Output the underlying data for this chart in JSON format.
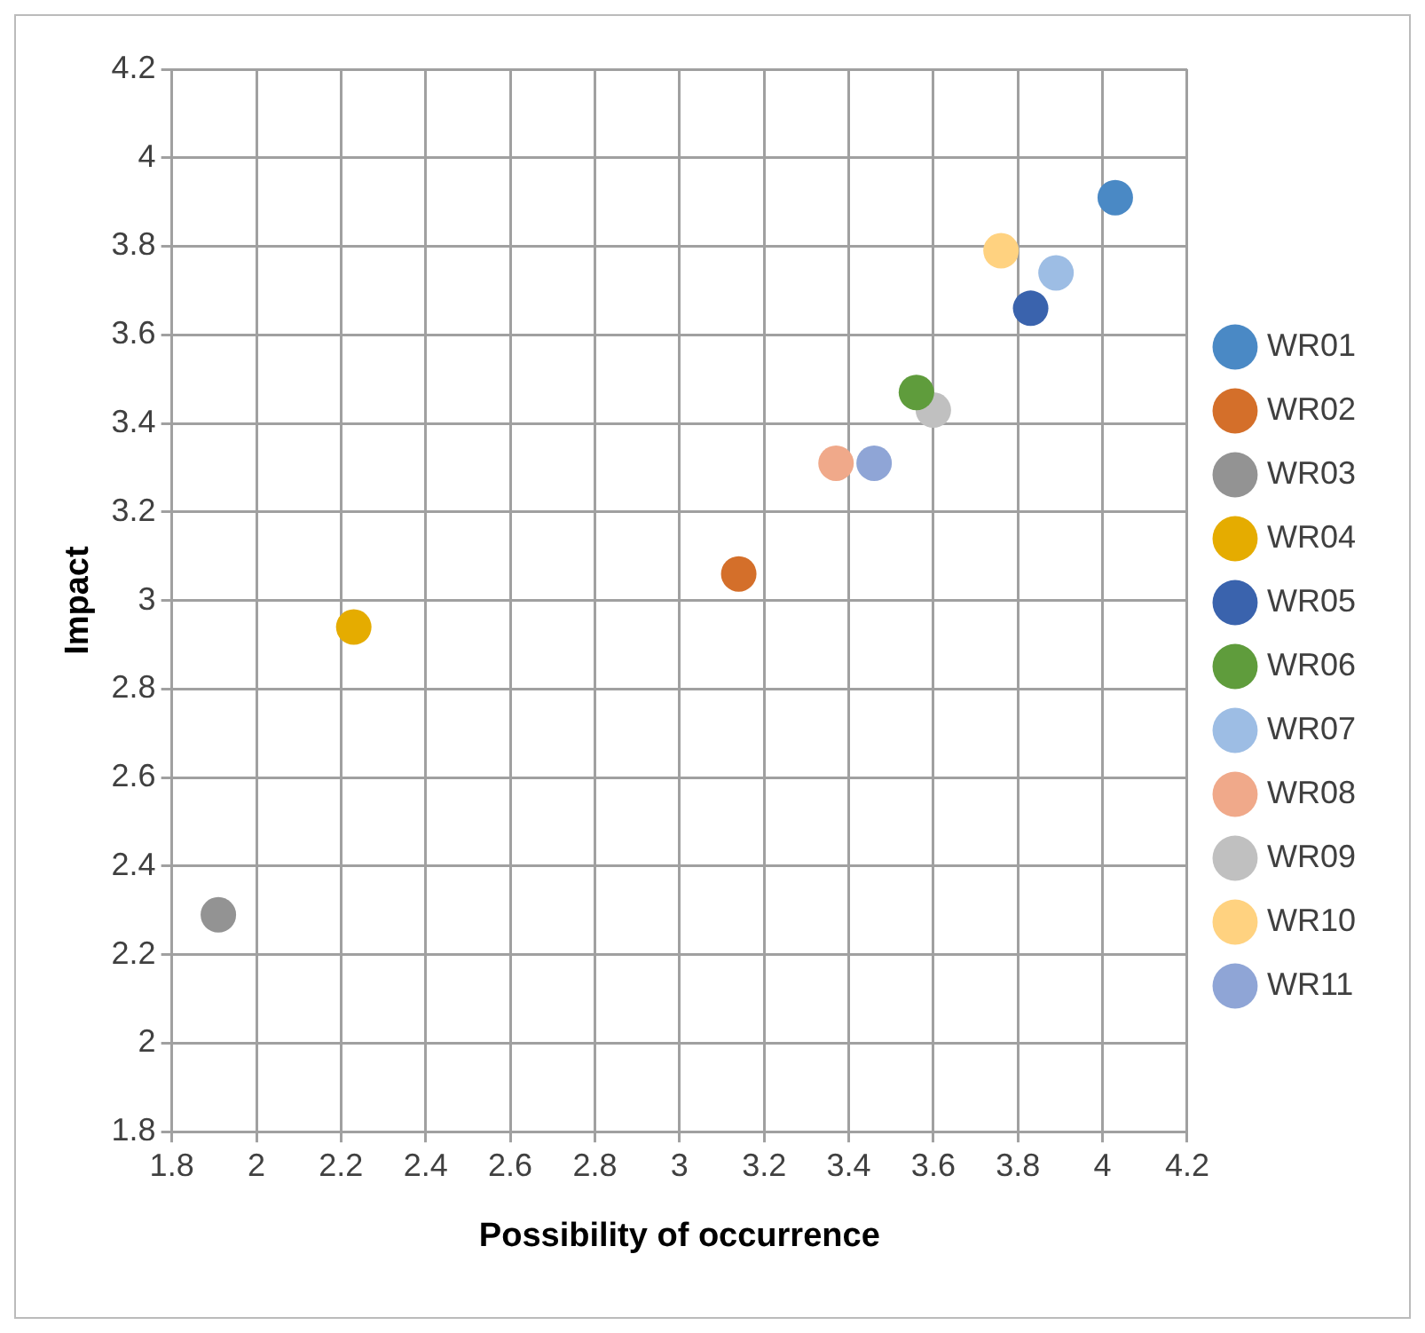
{
  "chart_data": {
    "type": "scatter",
    "xlabel": "Possibility of occurrence",
    "ylabel": "Impact",
    "xlim": [
      1.8,
      4.2
    ],
    "xticks": [
      1.8,
      2,
      2.2,
      2.4,
      2.6,
      2.8,
      3,
      3.2,
      3.4,
      3.6,
      3.8,
      4,
      4.2
    ],
    "ylim": [
      1.8,
      4.2
    ],
    "yticks": [
      1.8,
      2,
      2.2,
      2.4,
      2.6,
      2.8,
      3,
      3.2,
      3.4,
      3.6,
      3.8,
      4,
      4.2
    ],
    "grid": true,
    "legend": "right",
    "marker": "circle",
    "series": [
      {
        "name": "WR01",
        "color": "#4a89c5",
        "x": [
          4.03
        ],
        "values": [
          3.91
        ]
      },
      {
        "name": "WR02",
        "color": "#d46f2a",
        "x": [
          3.14
        ],
        "values": [
          3.06
        ]
      },
      {
        "name": "WR03",
        "color": "#939393",
        "x": [
          1.91
        ],
        "values": [
          2.29
        ]
      },
      {
        "name": "WR04",
        "color": "#e5ac00",
        "x": [
          2.23
        ],
        "values": [
          2.94
        ]
      },
      {
        "name": "WR05",
        "color": "#3a63ad",
        "x": [
          3.83
        ],
        "values": [
          3.66
        ]
      },
      {
        "name": "WR06",
        "color": "#5f9c3c",
        "x": [
          3.56
        ],
        "values": [
          3.47
        ]
      },
      {
        "name": "WR07",
        "color": "#9dbde4",
        "x": [
          3.89
        ],
        "values": [
          3.74
        ]
      },
      {
        "name": "WR08",
        "color": "#f0a98a",
        "x": [
          3.37
        ],
        "values": [
          3.31
        ]
      },
      {
        "name": "WR09",
        "color": "#c0c0c0",
        "x": [
          3.6
        ],
        "values": [
          3.43
        ]
      },
      {
        "name": "WR10",
        "color": "#ffd280",
        "x": [
          3.76
        ],
        "values": [
          3.79
        ]
      },
      {
        "name": "WR11",
        "color": "#8fa5d6",
        "x": [
          3.46
        ],
        "values": [
          3.31
        ]
      }
    ]
  }
}
